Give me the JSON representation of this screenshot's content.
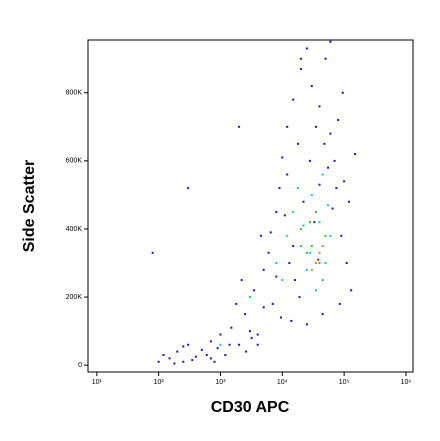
{
  "chart_data": {
    "type": "scatter",
    "xlabel": "CD30 APC",
    "ylabel": "Side Scatter",
    "xscale": "log",
    "xlim": [
      7.2,
      1300000
    ],
    "xticks": [
      {
        "value": 10,
        "label": "10¹"
      },
      {
        "value": 100,
        "label": "10²"
      },
      {
        "value": 1000,
        "label": "10³"
      },
      {
        "value": 10000,
        "label": "10⁴"
      },
      {
        "value": 100000,
        "label": "10⁵"
      },
      {
        "value": 1000000,
        "label": "10⁶"
      }
    ],
    "ylim": [
      -20000,
      955000
    ],
    "yticks": [
      0,
      {
        "value": 200000,
        "label": "200K"
      },
      {
        "value": 400000,
        "label": "400K"
      },
      {
        "value": 600000,
        "label": "600K"
      },
      {
        "value": 800000,
        "label": "800K"
      }
    ],
    "series": [
      {
        "color": "#1414c8",
        "x": [
          150,
          200,
          250,
          300,
          120,
          180,
          400,
          500,
          350,
          600,
          700,
          800,
          900,
          1000,
          1200,
          1500,
          2000,
          2500,
          1800,
          3000,
          3500,
          4000,
          2200,
          5000,
          6000,
          4500,
          7000,
          8000,
          9000,
          10000,
          12000,
          15000,
          20000,
          25000,
          30000,
          40000,
          50000,
          60000,
          70000,
          80000,
          100000,
          120000,
          150000,
          90000,
          110000,
          130000,
          5000,
          14000,
          25000,
          45000,
          12000,
          18000,
          35000,
          55000,
          75000,
          8000,
          6500,
          11000,
          16000,
          22000,
          28000,
          40000,
          65000,
          85000,
          9500,
          3200,
          700,
          250,
          1400,
          80,
          100,
          2600,
          15000,
          19000,
          33000,
          48000,
          95000,
          4000,
          20000,
          60000,
          13000,
          300,
          2000
        ],
        "y": [
          20000,
          40000,
          10000,
          60000,
          30000,
          5000,
          25000,
          45000,
          15000,
          30000,
          70000,
          10000,
          50000,
          90000,
          30000,
          110000,
          60000,
          150000,
          180000,
          100000,
          220000,
          60000,
          250000,
          280000,
          330000,
          380000,
          180000,
          450000,
          520000,
          610000,
          700000,
          780000,
          870000,
          930000,
          820000,
          760000,
          900000,
          680000,
          600000,
          720000,
          540000,
          480000,
          620000,
          380000,
          300000,
          220000,
          170000,
          130000,
          120000,
          150000,
          560000,
          650000,
          700000,
          580000,
          520000,
          260000,
          390000,
          440000,
          250000,
          480000,
          600000,
          530000,
          460000,
          180000,
          140000,
          80000,
          20000,
          55000,
          60000,
          330000,
          10000,
          40000,
          350000,
          200000,
          420000,
          650000,
          800000,
          90000,
          900000,
          950000,
          300000,
          520000,
          700000
        ]
      },
      {
        "color": "#00c8e0",
        "x": [
          8000,
          12000,
          15000,
          20000,
          25000,
          30000,
          40000,
          50000,
          35000,
          18000,
          60000,
          45000,
          1000,
          3000,
          22000,
          28000,
          55000,
          10000
        ],
        "y": [
          300000,
          380000,
          450000,
          350000,
          280000,
          500000,
          420000,
          300000,
          220000,
          520000,
          380000,
          560000,
          60000,
          200000,
          410000,
          330000,
          470000,
          250000
        ]
      },
      {
        "color": "#30c030",
        "x": [
          20000,
          30000,
          40000,
          35000,
          25000,
          50000,
          45000,
          28000
        ],
        "y": [
          400000,
          350000,
          300000,
          450000,
          330000,
          380000,
          250000,
          420000
        ]
      },
      {
        "color": "#f08020",
        "x": [
          35000,
          40000,
          30000,
          45000
        ],
        "y": [
          300000,
          330000,
          280000,
          350000
        ]
      },
      {
        "color": "#e01810",
        "x": [
          38000
        ],
        "y": [
          310000
        ]
      }
    ]
  }
}
